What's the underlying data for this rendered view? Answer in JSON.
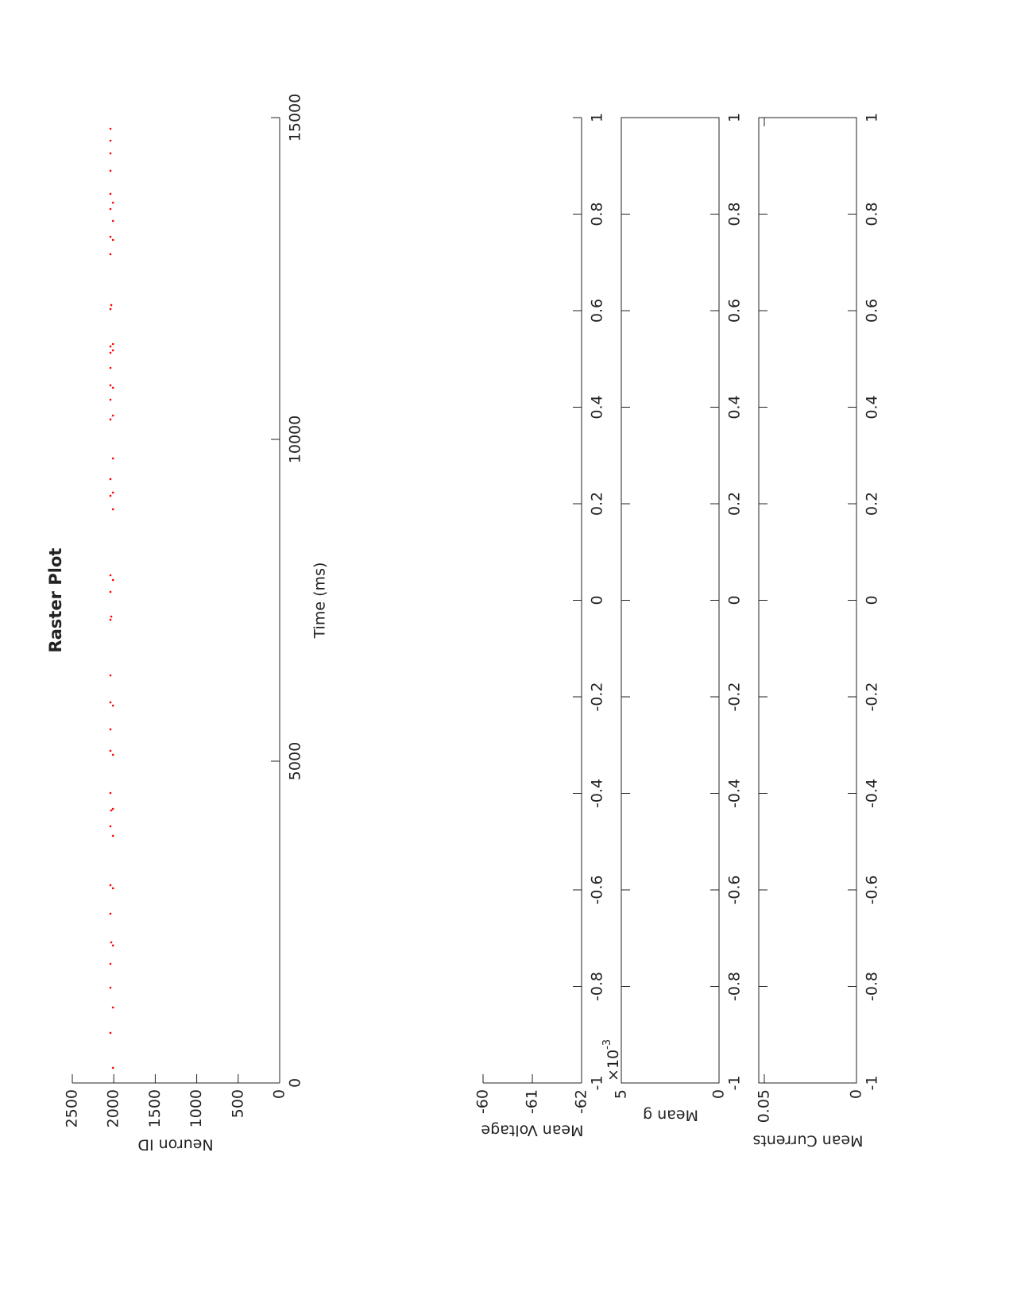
{
  "chart_data": [
    {
      "type": "scatter",
      "title": "Raster Plot",
      "x_label": "Time (ms)",
      "y_label": "Neuron ID",
      "color": "#ff0000",
      "box": false,
      "x": [
        235,
        778,
        1173,
        1481,
        1852,
        2136,
        2185,
        2630,
        3025,
        3074,
        3840,
        3988,
        4235,
        4259,
        4506,
        5099,
        5161,
        5494,
        5864,
        5914,
        6333,
        7198,
        7247,
        7630,
        7815,
        7889,
        8914,
        9124,
        9173,
        9383,
        9704,
        10309,
        10370,
        10617,
        10803,
        10840,
        11111,
        11346,
        11383,
        11445,
        11481,
        12025,
        12087,
        12877,
        13099,
        13148,
        13395,
        13580,
        13679,
        13815,
        14173,
        14444,
        14642,
        14827
      ],
      "values": [
        2010,
        2040,
        2010,
        2040,
        2040,
        2010,
        2030,
        2040,
        2010,
        2040,
        2010,
        2040,
        2030,
        2010,
        2040,
        2010,
        2040,
        2040,
        2010,
        2040,
        2040,
        2040,
        2030,
        2040,
        2010,
        2040,
        2010,
        2040,
        2010,
        2040,
        2010,
        2040,
        2010,
        2040,
        2010,
        2040,
        2040,
        2040,
        2010,
        2040,
        2010,
        2040,
        2030,
        2040,
        2010,
        2040,
        2010,
        2040,
        2010,
        2040,
        2040,
        2040,
        2040,
        2040
      ],
      "xlim": [
        0,
        15000
      ],
      "xticks": [
        0,
        5000,
        10000,
        15000
      ],
      "ylim": [
        0,
        2500
      ],
      "yticks": [
        0,
        500,
        1000,
        1500,
        2000,
        2500
      ]
    },
    {
      "type": "line",
      "y_label": "Mean Voltage",
      "box": false,
      "xlim": [
        -1,
        1
      ],
      "xticks": [
        -1,
        -0.8,
        -0.6,
        -0.4,
        -0.2,
        0,
        0.2,
        0.4,
        0.6,
        0.8,
        1
      ],
      "ylim": [
        -62,
        -60
      ],
      "yticks": [
        -62,
        -61,
        -60
      ]
    },
    {
      "type": "line",
      "y_label": "Mean g",
      "box": true,
      "y_multiplier": {
        "base": "×10",
        "exponent": "-3"
      },
      "xlim": [
        -1,
        1
      ],
      "xticks": [
        -1,
        -0.8,
        -0.6,
        -0.4,
        -0.2,
        0,
        0.2,
        0.4,
        0.6,
        0.8,
        1
      ],
      "ylim": [
        0,
        0.005
      ],
      "yticks": [
        0,
        {
          "value": 0.005,
          "label": "5"
        }
      ]
    },
    {
      "type": "line",
      "y_label": "Mean Currents",
      "box": true,
      "xlim": [
        -1,
        1
      ],
      "xticks": [
        -1,
        -0.8,
        -0.6,
        -0.4,
        -0.2,
        0,
        0.2,
        0.4,
        0.6,
        0.8,
        1
      ],
      "ylim": [
        0,
        0.053
      ],
      "yticks": [
        0,
        0.05
      ]
    }
  ]
}
